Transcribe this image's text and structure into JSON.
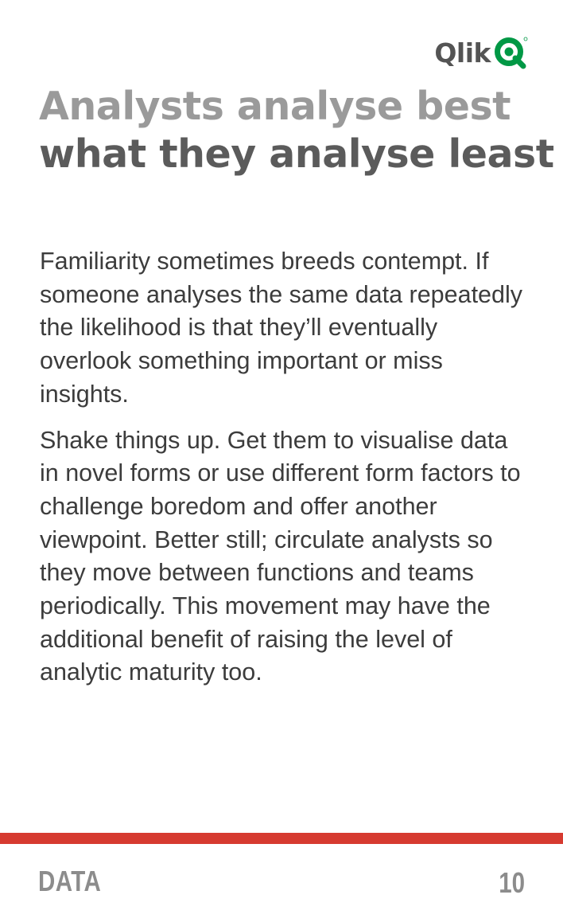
{
  "brand": {
    "logo_text": "Qlik",
    "accent_color": "#009845",
    "rule_color": "#d63a30"
  },
  "title": {
    "line1": "Analysts analyse best",
    "line2": "what they analyse least"
  },
  "body": {
    "paragraphs": [
      "Familiarity sometimes breeds contempt. If someone analyses the same data repeatedly the likelihood is that they’ll eventually overlook something important or miss insights.",
      "Shake things up. Get them to visualise data in novel forms or use different form factors to challenge boredom and offer another viewpoint. Better still; circulate analysts so they move between functions and teams periodically. This movement may have the additional benefit of raising the level of analytic maturity too."
    ]
  },
  "footer": {
    "section": "DATA",
    "page_number": "10"
  }
}
